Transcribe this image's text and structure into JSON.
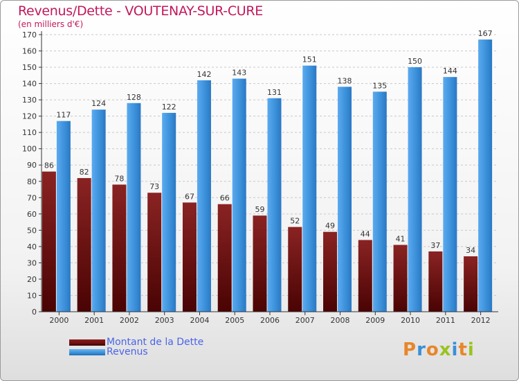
{
  "colors": {
    "debt": "#6e0f0f",
    "revenue": "#3a8fd8",
    "title": "#c2185b",
    "legend_text": "#4a64e8",
    "axis": "#333333",
    "grid": "#c8c8c8"
  },
  "legend": {
    "debt_label": "Montant de la Dette",
    "revenue_label": "Revenus"
  },
  "logo": {
    "text": "Proxiti"
  },
  "chart_data": {
    "type": "bar",
    "title": "Revenus/Dette - VOUTENAY-SUR-CURE",
    "subtitle": "(en milliers d'€)",
    "xlabel": "",
    "ylabel": "",
    "ylim": [
      0,
      170
    ],
    "ytick_step": 10,
    "grid": true,
    "categories": [
      "2000",
      "2001",
      "2002",
      "2003",
      "2004",
      "2005",
      "2006",
      "2007",
      "2008",
      "2009",
      "2010",
      "2011",
      "2012"
    ],
    "series": [
      {
        "name": "Montant de la Dette",
        "values": [
          86,
          82,
          78,
          73,
          67,
          66,
          59,
          52,
          49,
          44,
          41,
          37,
          34
        ]
      },
      {
        "name": "Revenus",
        "values": [
          117,
          124,
          128,
          122,
          142,
          143,
          131,
          151,
          138,
          135,
          150,
          144,
          167
        ]
      }
    ]
  }
}
